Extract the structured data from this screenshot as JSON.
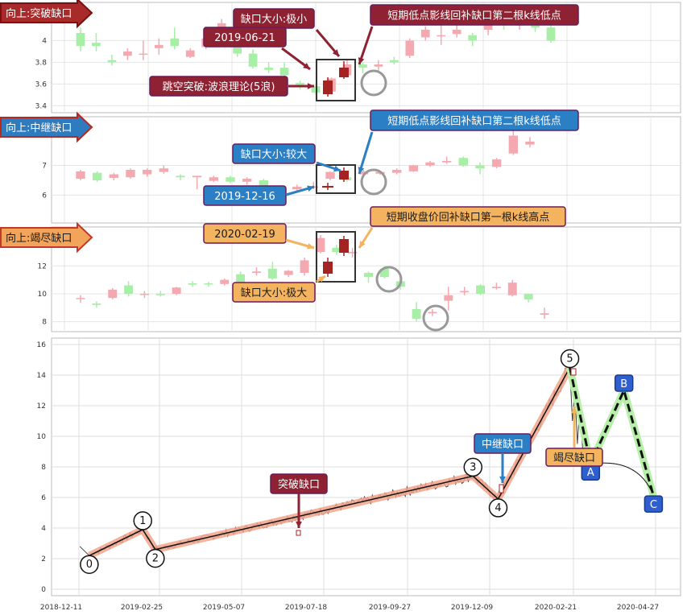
{
  "chart_data": [
    {
      "type": "candlestick",
      "panel": 1,
      "title": "向上:突破缺口",
      "ylim": [
        3.35,
        4.3
      ],
      "yticks": [
        3.4,
        3.6,
        3.8,
        4.0
      ],
      "annotations": [
        "缺口大小:极小",
        "2019-06-21",
        "跳空突破:波浪理论(5浪)",
        "短期低点影线回补缺口第二根k线低点"
      ],
      "candles": [
        {
          "o": 3.95,
          "c": 4.07,
          "h": 4.12,
          "l": 3.9,
          "up": false
        },
        {
          "o": 3.98,
          "c": 3.95,
          "h": 4.07,
          "l": 3.9,
          "up": false
        },
        {
          "o": 3.8,
          "c": 3.82,
          "h": 3.87,
          "l": 3.77,
          "up": false
        },
        {
          "o": 3.86,
          "c": 3.9,
          "h": 3.93,
          "l": 3.82,
          "up": true
        },
        {
          "o": 3.88,
          "c": 3.87,
          "h": 4.0,
          "l": 3.82,
          "up": true
        },
        {
          "o": 3.93,
          "c": 3.96,
          "h": 4.02,
          "l": 3.87,
          "up": true
        },
        {
          "o": 3.95,
          "c": 4.02,
          "h": 4.12,
          "l": 3.92,
          "up": false
        },
        {
          "o": 3.85,
          "c": 3.91,
          "h": 3.93,
          "l": 3.84,
          "up": true
        },
        {
          "o": 3.94,
          "c": 4.02,
          "h": 4.03,
          "l": 3.92,
          "up": true
        },
        {
          "o": 4.07,
          "c": 4.16,
          "h": 4.2,
          "l": 4.05,
          "up": true
        },
        {
          "o": 3.95,
          "c": 3.88,
          "h": 3.97,
          "l": 3.85,
          "up": false
        },
        {
          "o": 3.88,
          "c": 3.76,
          "h": 3.92,
          "l": 3.74,
          "up": false
        },
        {
          "o": 3.75,
          "c": 3.73,
          "h": 3.8,
          "l": 3.7,
          "up": false
        },
        {
          "o": 3.75,
          "c": 3.68,
          "h": 3.8,
          "l": 3.65,
          "up": false
        },
        {
          "o": 3.61,
          "c": 3.58,
          "h": 3.63,
          "l": 3.55,
          "up": false
        },
        {
          "o": 3.58,
          "c": 3.52,
          "h": 3.6,
          "l": 3.5,
          "up": false
        },
        {
          "o": 3.53,
          "c": 3.65,
          "h": 3.66,
          "l": 3.5,
          "up": true
        },
        {
          "o": 3.68,
          "c": 3.78,
          "h": 3.82,
          "l": 3.66,
          "up": true
        },
        {
          "o": 3.78,
          "c": 3.75,
          "h": 3.8,
          "l": 3.7,
          "up": false
        },
        {
          "o": 3.78,
          "c": 3.76,
          "h": 3.82,
          "l": 3.72,
          "up": true
        },
        {
          "o": 3.8,
          "c": 3.82,
          "h": 3.85,
          "l": 3.78,
          "up": false
        },
        {
          "o": 3.86,
          "c": 4.0,
          "h": 4.02,
          "l": 3.84,
          "up": true
        },
        {
          "o": 4.03,
          "c": 4.1,
          "h": 4.13,
          "l": 4.0,
          "up": true
        },
        {
          "o": 4.05,
          "c": 4.05,
          "h": 4.14,
          "l": 3.96,
          "up": true
        },
        {
          "o": 4.06,
          "c": 4.1,
          "h": 4.15,
          "l": 4.03,
          "up": true
        },
        {
          "o": 4.05,
          "c": 4.0,
          "h": 4.07,
          "l": 3.95,
          "up": false
        },
        {
          "o": 4.1,
          "c": 4.2,
          "h": 4.25,
          "l": 4.05,
          "up": true
        },
        {
          "o": 4.2,
          "c": 4.17,
          "h": 4.28,
          "l": 4.1,
          "up": false
        },
        {
          "o": 4.14,
          "c": 4.15,
          "h": 4.18,
          "l": 4.1,
          "up": true
        },
        {
          "o": 4.15,
          "c": 4.12,
          "h": 4.2,
          "l": 4.08,
          "up": false
        },
        {
          "o": 4.12,
          "c": 4.0,
          "h": 4.15,
          "l": 3.98,
          "up": false
        }
      ]
    },
    {
      "type": "candlestick",
      "panel": 2,
      "title": "向上:中继缺口",
      "ylim": [
        5.2,
        8.5
      ],
      "yticks": [
        6,
        7
      ],
      "annotations": [
        "缺口大小:较大",
        "2019-12-16",
        "短期低点影线回补缺口第二根k线低点"
      ],
      "candles": [
        {
          "o": 6.55,
          "c": 6.8,
          "h": 6.85,
          "l": 6.5,
          "up": true
        },
        {
          "o": 6.5,
          "c": 6.75,
          "h": 6.8,
          "l": 6.45,
          "up": false
        },
        {
          "o": 6.58,
          "c": 6.7,
          "h": 6.75,
          "l": 6.5,
          "up": true
        },
        {
          "o": 6.6,
          "c": 6.85,
          "h": 6.9,
          "l": 6.55,
          "up": true
        },
        {
          "o": 6.7,
          "c": 6.85,
          "h": 6.9,
          "l": 6.62,
          "up": true
        },
        {
          "o": 6.78,
          "c": 6.9,
          "h": 7.0,
          "l": 6.72,
          "up": true
        },
        {
          "o": 6.65,
          "c": 6.6,
          "h": 6.7,
          "l": 6.5,
          "up": false
        },
        {
          "o": 6.65,
          "c": 6.6,
          "h": 6.65,
          "l": 6.2,
          "up": true
        },
        {
          "o": 6.48,
          "c": 6.6,
          "h": 6.65,
          "l": 6.44,
          "up": true
        },
        {
          "o": 6.45,
          "c": 6.6,
          "h": 6.65,
          "l": 6.4,
          "up": false
        },
        {
          "o": 6.45,
          "c": 6.55,
          "h": 6.6,
          "l": 6.35,
          "up": true
        },
        {
          "o": 6.5,
          "c": 6.2,
          "h": 6.55,
          "l": 6.0,
          "up": false
        },
        {
          "o": 6.25,
          "c": 6.15,
          "h": 6.3,
          "l": 6.0,
          "up": false
        },
        {
          "o": 6.2,
          "c": 6.28,
          "h": 6.35,
          "l": 6.15,
          "up": true
        },
        {
          "o": 6.25,
          "c": 6.3,
          "h": 6.45,
          "l": 6.2,
          "up": true
        },
        {
          "o": 6.55,
          "c": 6.78,
          "h": 6.8,
          "l": 6.5,
          "up": true
        },
        {
          "o": 6.5,
          "c": 6.6,
          "h": 6.7,
          "l": 6.45,
          "up": false
        },
        {
          "o": 6.7,
          "c": 6.8,
          "h": 6.85,
          "l": 6.6,
          "up": true
        },
        {
          "o": 6.72,
          "c": 6.78,
          "h": 6.82,
          "l": 6.68,
          "up": true
        },
        {
          "o": 6.75,
          "c": 6.85,
          "h": 6.9,
          "l": 6.7,
          "up": true
        },
        {
          "o": 6.8,
          "c": 7.0,
          "h": 7.02,
          "l": 6.78,
          "up": true
        },
        {
          "o": 7.0,
          "c": 7.1,
          "h": 7.15,
          "l": 6.95,
          "up": true
        },
        {
          "o": 7.1,
          "c": 7.15,
          "h": 7.3,
          "l": 7.05,
          "up": true
        },
        {
          "o": 7.25,
          "c": 7.0,
          "h": 7.3,
          "l": 6.95,
          "up": false
        },
        {
          "o": 7.0,
          "c": 6.9,
          "h": 7.1,
          "l": 6.7,
          "up": false
        },
        {
          "o": 6.95,
          "c": 7.2,
          "h": 7.25,
          "l": 6.9,
          "up": true
        },
        {
          "o": 7.4,
          "c": 8.0,
          "h": 8.3,
          "l": 7.35,
          "up": true
        },
        {
          "o": 7.7,
          "c": 7.8,
          "h": 7.95,
          "l": 7.6,
          "up": true
        }
      ]
    },
    {
      "type": "candlestick",
      "panel": 3,
      "title": "向上:竭尽缺口",
      "ylim": [
        7.4,
        14.5
      ],
      "yticks": [
        8,
        10,
        12
      ],
      "annotations": [
        "2020-02-19",
        "缺口大小:极大",
        "短期收盘价回补缺口第一根k线高点"
      ],
      "candles": [
        {
          "o": 9.7,
          "c": 9.65,
          "h": 9.9,
          "l": 9.35,
          "up": true
        },
        {
          "o": 9.3,
          "c": 9.2,
          "h": 9.45,
          "l": 9.0,
          "up": false
        },
        {
          "o": 9.7,
          "c": 10.3,
          "h": 10.4,
          "l": 9.6,
          "up": true
        },
        {
          "o": 10.0,
          "c": 10.6,
          "h": 10.9,
          "l": 9.8,
          "up": false
        },
        {
          "o": 9.95,
          "c": 10.0,
          "h": 10.2,
          "l": 9.7,
          "up": true
        },
        {
          "o": 9.9,
          "c": 10.0,
          "h": 10.2,
          "l": 9.8,
          "up": false
        },
        {
          "o": 10.0,
          "c": 10.45,
          "h": 10.5,
          "l": 9.9,
          "up": true
        },
        {
          "o": 10.65,
          "c": 10.75,
          "h": 10.9,
          "l": 10.5,
          "up": false
        },
        {
          "o": 10.7,
          "c": 10.75,
          "h": 10.85,
          "l": 10.5,
          "up": false
        },
        {
          "o": 10.7,
          "c": 11.0,
          "h": 11.1,
          "l": 10.6,
          "up": true
        },
        {
          "o": 10.8,
          "c": 11.4,
          "h": 11.6,
          "l": 10.7,
          "up": false
        },
        {
          "o": 11.5,
          "c": 11.6,
          "h": 11.9,
          "l": 11.3,
          "up": true
        },
        {
          "o": 11.1,
          "c": 11.8,
          "h": 12.3,
          "l": 11.0,
          "up": false
        },
        {
          "o": 11.35,
          "c": 11.65,
          "h": 11.7,
          "l": 11.2,
          "up": true
        },
        {
          "o": 11.5,
          "c": 12.4,
          "h": 12.6,
          "l": 11.3,
          "up": true
        },
        {
          "o": 13.0,
          "c": 14.0,
          "h": 14.2,
          "l": 12.9,
          "up": true
        },
        {
          "o": 13.3,
          "c": 13.0,
          "h": 13.5,
          "l": 12.8,
          "up": false
        },
        {
          "o": 12.9,
          "c": 13.0,
          "h": 13.3,
          "l": 12.6,
          "up": true
        },
        {
          "o": 11.5,
          "c": 11.2,
          "h": 11.6,
          "l": 10.8,
          "up": false
        },
        {
          "o": 11.2,
          "c": 11.8,
          "h": 12.0,
          "l": 11.1,
          "up": false
        },
        {
          "o": 10.9,
          "c": 10.5,
          "h": 11.0,
          "l": 10.3,
          "up": false
        },
        {
          "o": 8.9,
          "c": 8.2,
          "h": 9.4,
          "l": 8.0,
          "up": false
        },
        {
          "o": 8.6,
          "c": 8.7,
          "h": 8.9,
          "l": 8.4,
          "up": true
        },
        {
          "o": 9.5,
          "c": 9.9,
          "h": 10.5,
          "l": 8.8,
          "up": true
        },
        {
          "o": 10.1,
          "c": 10.2,
          "h": 10.5,
          "l": 9.9,
          "up": true
        },
        {
          "o": 10.0,
          "c": 10.6,
          "h": 10.7,
          "l": 9.9,
          "up": false
        },
        {
          "o": 10.5,
          "c": 10.4,
          "h": 10.8,
          "l": 10.3,
          "up": true
        },
        {
          "o": 9.9,
          "c": 10.8,
          "h": 11.0,
          "l": 9.8,
          "up": true
        },
        {
          "o": 10.0,
          "c": 9.6,
          "h": 10.0,
          "l": 9.4,
          "up": false
        },
        {
          "o": 8.6,
          "c": 8.5,
          "h": 9.0,
          "l": 8.2,
          "up": true
        }
      ]
    },
    {
      "type": "line",
      "panel": 4,
      "xlabels": [
        "2018-12-11",
        "2019-02-25",
        "2019-05-07",
        "2019-07-18",
        "2019-09-27",
        "2019-12-09",
        "2020-02-21",
        "2020-04-27"
      ],
      "ylim": [
        0,
        16
      ],
      "yticks": [
        0,
        2,
        4,
        6,
        8,
        10,
        12,
        14,
        16
      ],
      "wave_points": [
        {
          "label": "0",
          "x": 0.06,
          "y": 2.2
        },
        {
          "label": "1",
          "x": 0.145,
          "y": 3.9
        },
        {
          "label": "2",
          "x": 0.165,
          "y": 2.6
        },
        {
          "label": "3",
          "x": 0.67,
          "y": 7.4
        },
        {
          "label": "4",
          "x": 0.71,
          "y": 5.9
        },
        {
          "label": "5",
          "x": 0.824,
          "y": 14.5
        }
      ],
      "abc_points": [
        {
          "label": "A",
          "x": 0.857,
          "y": 8.2
        },
        {
          "label": "B",
          "x": 0.91,
          "y": 13.0
        },
        {
          "label": "C",
          "x": 0.957,
          "y": 6.1
        }
      ],
      "callouts": [
        "突破缺口",
        "中继缺口",
        "竭尽缺口"
      ]
    }
  ]
}
